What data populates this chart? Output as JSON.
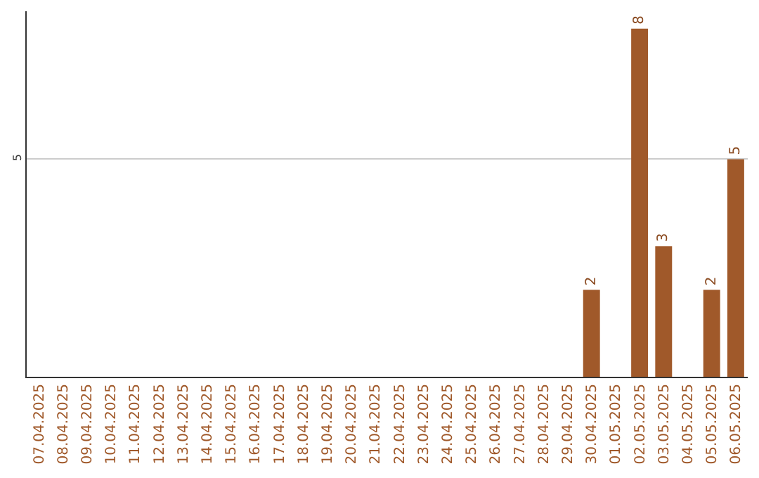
{
  "chart_data": {
    "type": "bar",
    "categories": [
      "07.04.2025",
      "08.04.2025",
      "09.04.2025",
      "10.04.2025",
      "11.04.2025",
      "12.04.2025",
      "13.04.2025",
      "14.04.2025",
      "15.04.2025",
      "16.04.2025",
      "17.04.2025",
      "18.04.2025",
      "19.04.2025",
      "20.04.2025",
      "21.04.2025",
      "22.04.2025",
      "23.04.2025",
      "24.04.2025",
      "25.04.2025",
      "26.04.2025",
      "27.04.2025",
      "28.04.2025",
      "29.04.2025",
      "30.04.2025",
      "01.05.2025",
      "02.05.2025",
      "03.05.2025",
      "04.05.2025",
      "05.05.2025",
      "06.05.2025"
    ],
    "values": [
      null,
      null,
      null,
      null,
      null,
      null,
      null,
      null,
      null,
      null,
      null,
      null,
      null,
      null,
      null,
      null,
      null,
      null,
      null,
      null,
      null,
      null,
      null,
      2,
      null,
      8,
      3,
      null,
      2,
      5
    ],
    "data_labels": true,
    "color": "#a0592a",
    "ylim": [
      0,
      8.4
    ],
    "yticks": [
      5
    ],
    "grid": "y",
    "legend": false
  }
}
